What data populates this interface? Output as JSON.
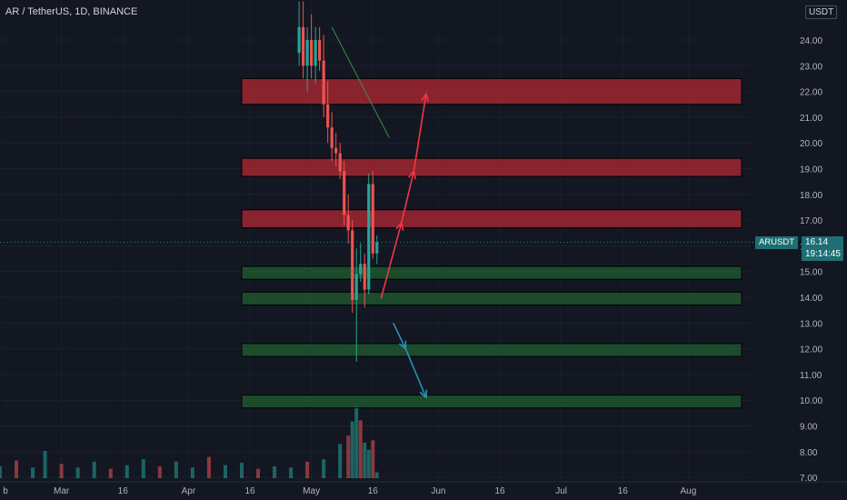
{
  "header": {
    "title": "AR / TetherUS, 1D, BINANCE",
    "currency": "USDT"
  },
  "price_tag": {
    "symbol": "ARUSDT",
    "price": "16.14",
    "countdown": "19:14:45"
  },
  "colors": {
    "background": "#131722",
    "up": "#26a69a",
    "down": "#ef5350",
    "resistance_zone": "#b22833",
    "support_zone": "#1f5e2e",
    "up_arrow": "#f23645",
    "down_arrow": "#2d8fb3",
    "line": "#26c6da",
    "trendline": "#3d8b4b"
  },
  "chart_data": {
    "type": "candlestick",
    "title": "AR / TetherUS, 1D, BINANCE",
    "y_axis": {
      "label": "USDT",
      "range": [
        7,
        25
      ],
      "ticks": [
        "24.00",
        "23.00",
        "22.00",
        "21.00",
        "20.00",
        "19.00",
        "18.00",
        "17.00",
        "16.00",
        "15.00",
        "14.00",
        "13.00",
        "12.00",
        "11.00",
        "10.00",
        "9.00",
        "8.00",
        "7.00"
      ],
      "scale": "linear",
      "position": "right"
    },
    "x_axis": {
      "ticks": [
        "b",
        "Mar",
        "16",
        "Apr",
        "16",
        "May",
        "16",
        "Jun",
        "16",
        "Jul",
        "16",
        "Aug"
      ],
      "range": [
        "2022-02-14",
        "2022-08-14"
      ]
    },
    "last_price": 16.14,
    "zones": [
      {
        "kind": "resistance",
        "low": 21.5,
        "high": 22.5
      },
      {
        "kind": "resistance",
        "low": 18.7,
        "high": 19.4
      },
      {
        "kind": "resistance",
        "low": 16.7,
        "high": 17.4
      },
      {
        "kind": "support",
        "low": 14.7,
        "high": 15.2
      },
      {
        "kind": "support",
        "low": 13.7,
        "high": 14.2
      },
      {
        "kind": "support",
        "low": 11.7,
        "high": 12.2
      },
      {
        "kind": "support",
        "low": 9.7,
        "high": 10.2
      }
    ],
    "projections": [
      {
        "direction": "up",
        "points": [
          [
            "2022-05-18",
            13.95
          ],
          [
            "2022-05-23",
            16.9
          ],
          [
            "2022-05-26",
            18.9
          ],
          [
            "2022-05-29",
            21.9
          ]
        ]
      },
      {
        "direction": "down",
        "points": [
          [
            "2022-05-21",
            13.0
          ],
          [
            "2022-05-24",
            12.0
          ],
          [
            "2022-05-29",
            10.1
          ]
        ]
      }
    ],
    "candles": [
      [
        "2022-04-28",
        23.5,
        25.5,
        23.0,
        24.5
      ],
      [
        "2022-04-29",
        24.5,
        25.5,
        22.5,
        23.0
      ],
      [
        "2022-04-30",
        23.0,
        24.5,
        22.0,
        24.0
      ],
      [
        "2022-05-01",
        24.0,
        25.0,
        22.5,
        23.0
      ],
      [
        "2022-05-02",
        23.0,
        24.5,
        22.3,
        24.0
      ],
      [
        "2022-05-03",
        24.0,
        24.5,
        22.8,
        23.2
      ],
      [
        "2022-05-04",
        23.2,
        24.2,
        21.0,
        21.5
      ],
      [
        "2022-05-05",
        21.5,
        22.4,
        20.0,
        20.6
      ],
      [
        "2022-05-06",
        20.6,
        21.2,
        19.3,
        19.8
      ],
      [
        "2022-05-07",
        19.8,
        20.4,
        19.1,
        19.6
      ],
      [
        "2022-05-08",
        19.6,
        20.0,
        18.6,
        18.9
      ],
      [
        "2022-05-09",
        18.9,
        19.3,
        16.8,
        17.2
      ],
      [
        "2022-05-10",
        17.2,
        18.0,
        16.1,
        16.6
      ],
      [
        "2022-05-11",
        16.6,
        17.0,
        13.4,
        13.9
      ],
      [
        "2022-05-12",
        13.9,
        15.9,
        11.5,
        14.9
      ],
      [
        "2022-05-13",
        14.9,
        16.1,
        14.6,
        15.3
      ],
      [
        "2022-05-14",
        15.3,
        15.7,
        13.6,
        14.3
      ],
      [
        "2022-05-15",
        14.3,
        18.8,
        14.1,
        18.4
      ],
      [
        "2022-05-16",
        18.4,
        18.9,
        15.5,
        15.7
      ],
      [
        "2022-05-17",
        15.7,
        16.4,
        15.3,
        16.14
      ]
    ],
    "volume": [
      [
        "2022-02-14",
        1.0
      ],
      [
        "2022-02-18",
        1.5
      ],
      [
        "2022-02-22",
        0.9
      ],
      [
        "2022-02-25",
        2.3
      ],
      [
        "2022-03-01",
        1.2
      ],
      [
        "2022-03-05",
        0.9
      ],
      [
        "2022-03-09",
        1.4
      ],
      [
        "2022-03-13",
        0.8
      ],
      [
        "2022-03-17",
        1.1
      ],
      [
        "2022-03-21",
        1.6
      ],
      [
        "2022-03-25",
        1.0
      ],
      [
        "2022-03-29",
        1.4
      ],
      [
        "2022-04-02",
        0.9
      ],
      [
        "2022-04-06",
        1.8
      ],
      [
        "2022-04-10",
        1.1
      ],
      [
        "2022-04-14",
        1.3
      ],
      [
        "2022-04-18",
        0.8
      ],
      [
        "2022-04-22",
        1.0
      ],
      [
        "2022-04-26",
        0.9
      ],
      [
        "2022-04-30",
        1.4
      ],
      [
        "2022-05-04",
        1.6
      ],
      [
        "2022-05-08",
        2.9
      ],
      [
        "2022-05-10",
        3.6
      ],
      [
        "2022-05-11",
        4.8
      ],
      [
        "2022-05-12",
        6.1
      ],
      [
        "2022-05-13",
        4.9
      ],
      [
        "2022-05-14",
        3.0
      ],
      [
        "2022-05-15",
        2.4
      ],
      [
        "2022-05-16",
        3.2
      ],
      [
        "2022-05-17",
        0.5
      ]
    ]
  }
}
